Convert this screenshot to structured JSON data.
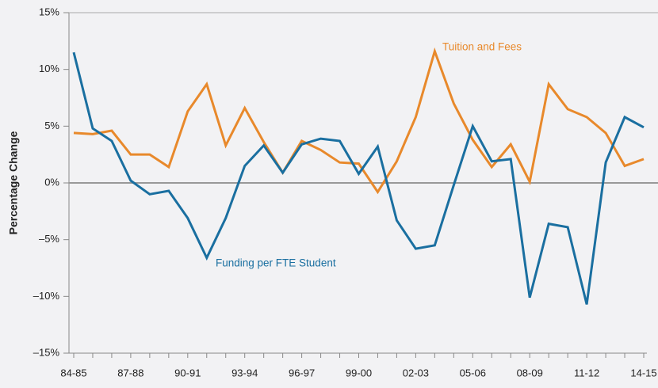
{
  "chart_data": {
    "type": "line",
    "y_label": "Percentage Change",
    "categories": [
      "84-85",
      null,
      null,
      "87-88",
      null,
      null,
      "90-91",
      null,
      null,
      "93-94",
      null,
      null,
      "96-97",
      null,
      null,
      "99-00",
      null,
      null,
      "02-03",
      null,
      null,
      "05-06",
      null,
      null,
      "08-09",
      null,
      null,
      "11-12",
      null,
      null,
      "14-15"
    ],
    "series": [
      {
        "name": "Tuition and Fees",
        "color": "#e8892b",
        "values": [
          4.4,
          4.3,
          4.6,
          2.5,
          2.5,
          1.4,
          6.3,
          8.7,
          3.3,
          6.6,
          3.6,
          0.9,
          3.7,
          2.9,
          1.8,
          1.7,
          -0.8,
          1.9,
          5.8,
          11.6,
          7.0,
          3.8,
          1.4,
          3.4,
          0.1,
          8.7,
          6.5,
          5.8,
          4.4,
          1.5,
          2.1
        ]
      },
      {
        "name": "Funding per FTE Student",
        "color": "#1a6fa0",
        "values": [
          11.5,
          4.8,
          3.7,
          0.2,
          -1.0,
          -0.7,
          -3.1,
          -6.6,
          -3.1,
          1.5,
          3.3,
          0.9,
          3.4,
          3.9,
          3.7,
          0.8,
          3.2,
          -3.3,
          -5.8,
          -5.5,
          -0.2,
          5.0,
          1.9,
          2.1,
          -10.1,
          -3.6,
          -3.9,
          -10.7,
          1.8,
          5.8,
          4.9
        ]
      }
    ],
    "ylim": [
      -15,
      15
    ],
    "yticks": [
      {
        "value": -15,
        "label": "–15%"
      },
      {
        "value": -10,
        "label": "–10%"
      },
      {
        "value": -5,
        "label": "–5%"
      },
      {
        "value": 0,
        "label": "0%"
      },
      {
        "value": 5,
        "label": "5%"
      },
      {
        "value": 10,
        "label": "10%"
      },
      {
        "value": 15,
        "label": "15%"
      }
    ]
  }
}
